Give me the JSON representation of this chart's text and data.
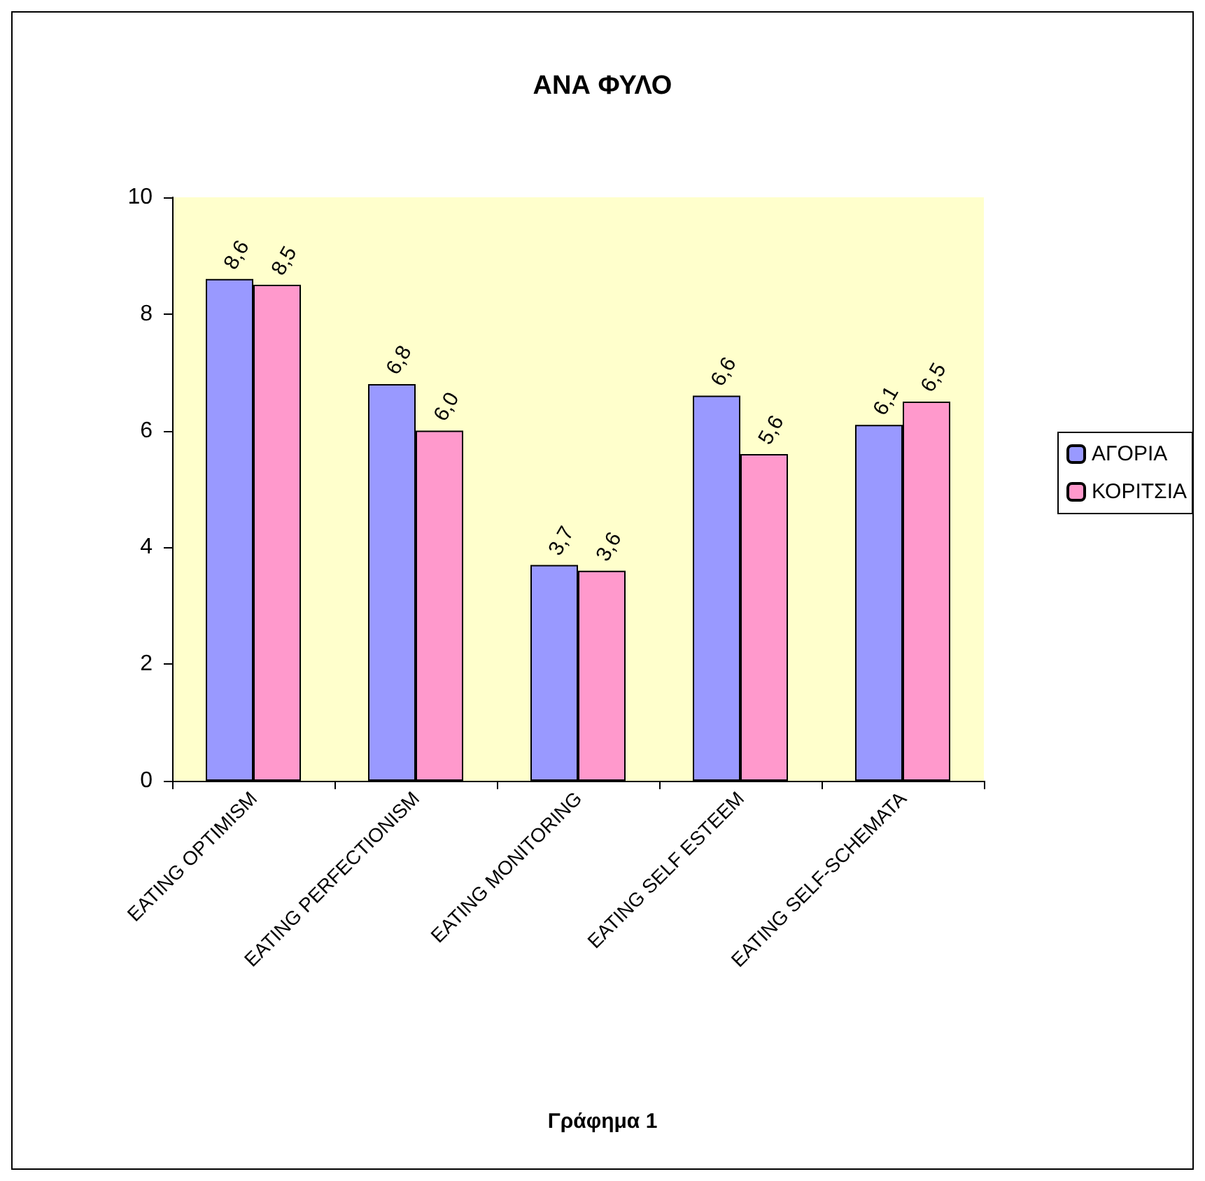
{
  "chart_data": {
    "type": "bar",
    "title": "ΑΝΑ ΦΥΛΟ",
    "annotations": [
      "Γράφημα 1"
    ],
    "categories": [
      "EATING OPTIMISM",
      "EATING PERFECTIONISM",
      "EATING MONITORING",
      "EATING SELF ESTEEM",
      "EATING SELF-SCHEMATA"
    ],
    "series": [
      {
        "name": "ΑΓΟΡΙΑ",
        "color": "#9999ff",
        "values": [
          8.6,
          6.8,
          3.7,
          6.6,
          6.1
        ],
        "value_labels": [
          "8,6",
          "6,8",
          "3,7",
          "6,6",
          "6,1"
        ]
      },
      {
        "name": "ΚΟΡΙΤΣΙΑ",
        "color": "#ff99cc",
        "values": [
          8.5,
          6.0,
          3.6,
          5.6,
          6.5
        ],
        "value_labels": [
          "8,5",
          "6,0",
          "3,6",
          "5,6",
          "6,5"
        ]
      }
    ],
    "ylim": [
      0,
      10
    ],
    "yticks": [
      0,
      2,
      4,
      6,
      8,
      10
    ],
    "grid": false,
    "legend": "right"
  }
}
